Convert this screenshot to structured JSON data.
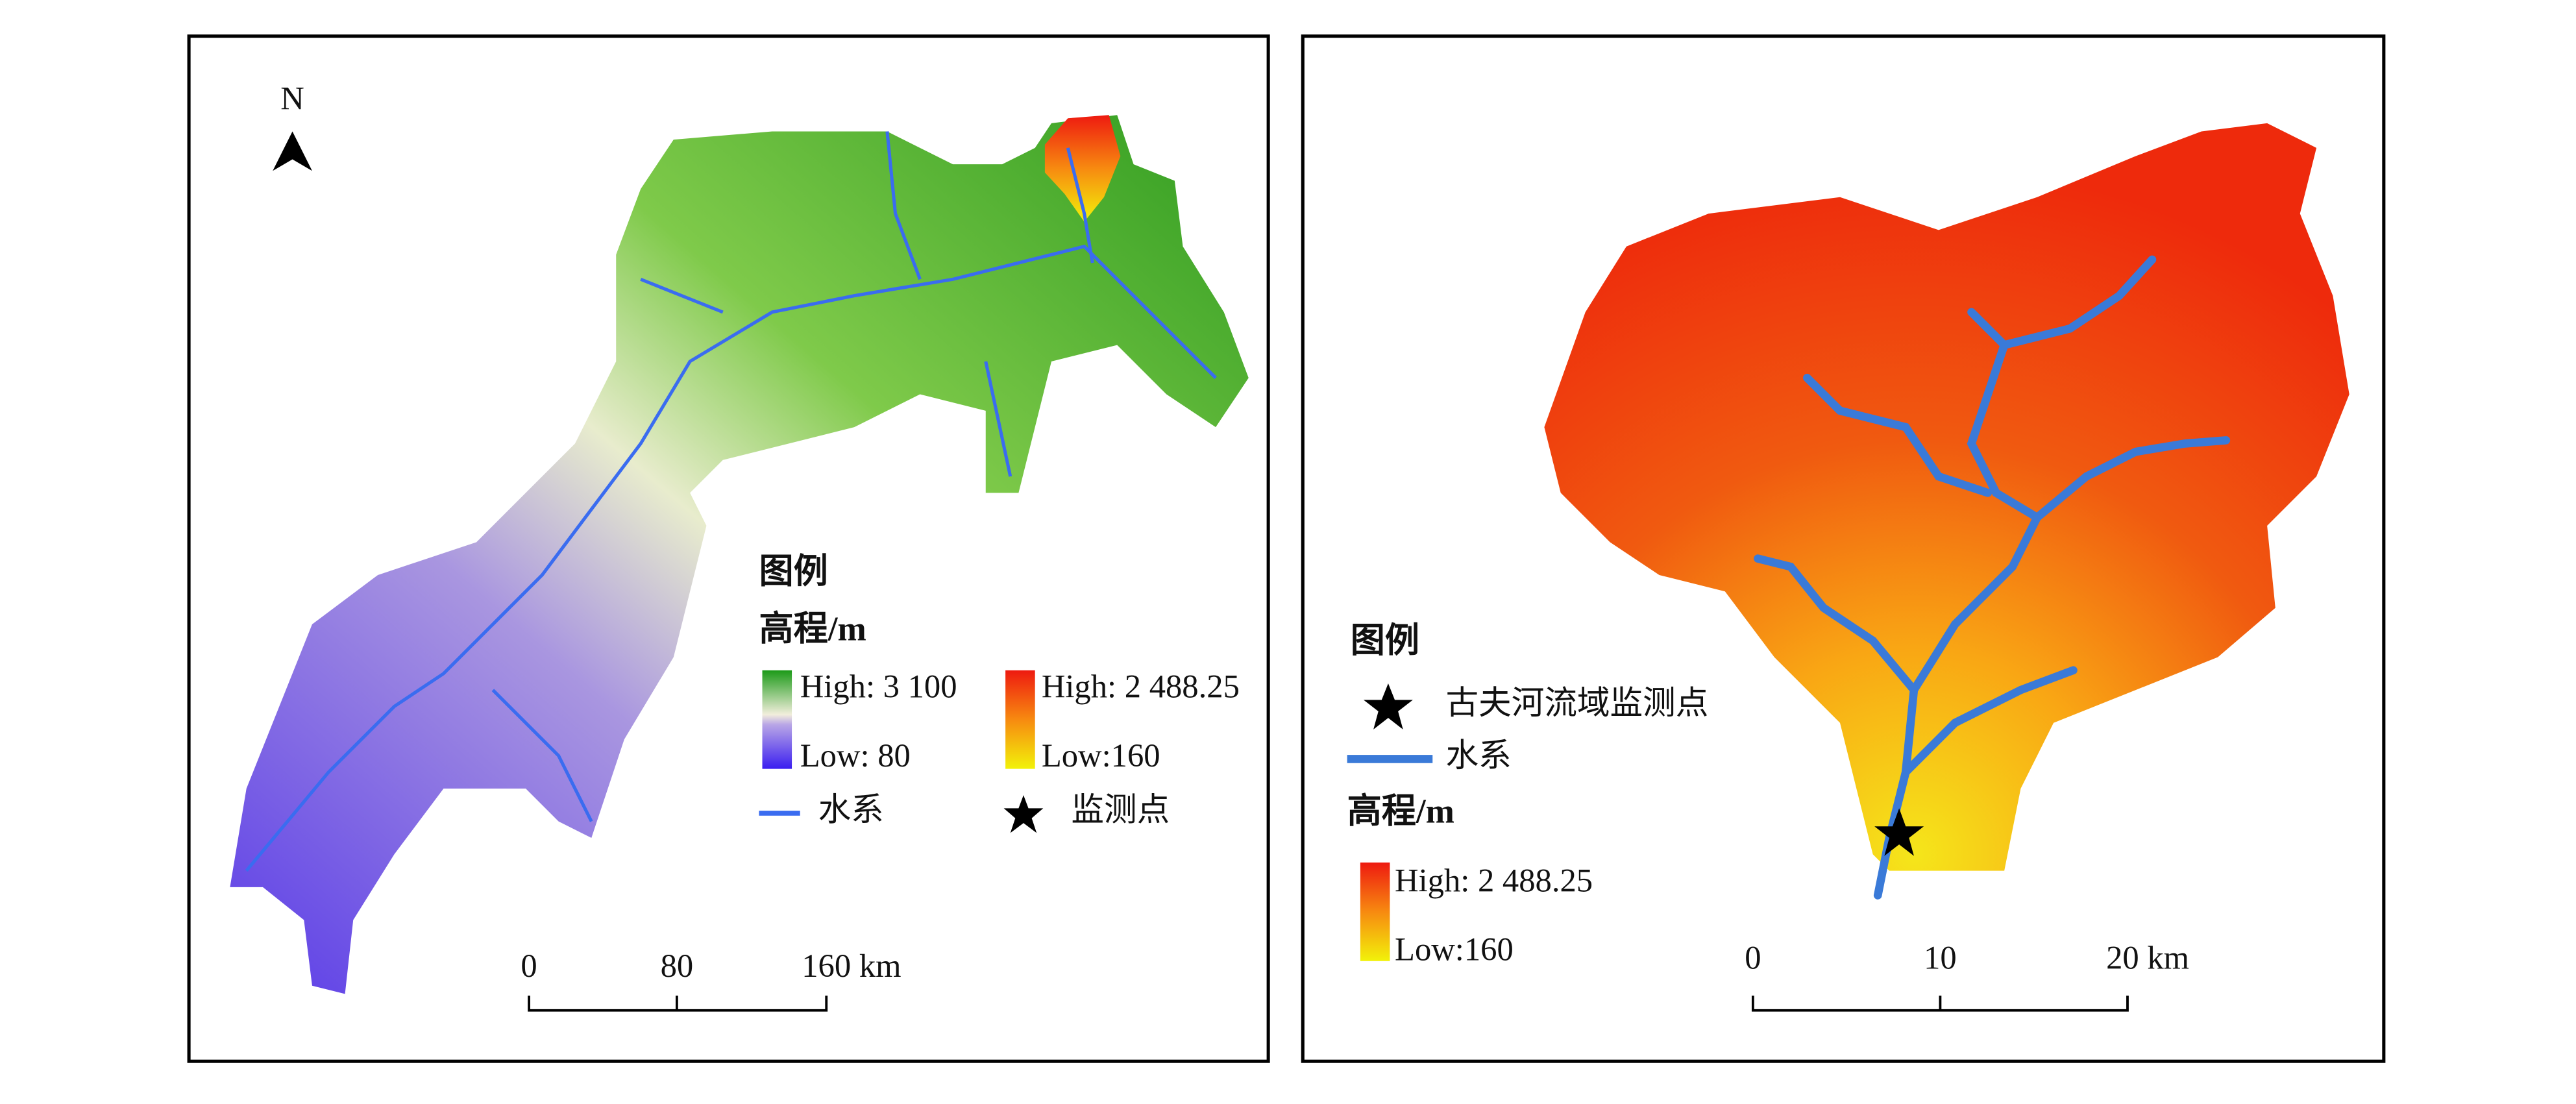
{
  "left_map": {
    "north": "N",
    "legend": {
      "title": "图例",
      "elevation_label": "高程/m",
      "high_1": "High: 3 100",
      "low_1": "Low: 80",
      "high_2": "High: 2 488.25",
      "low_2": "Low:160",
      "river": "水系",
      "station": "监测点"
    },
    "scale_bar": [
      "0",
      "80",
      "160 km"
    ]
  },
  "right_map": {
    "legend": {
      "title": "图例",
      "station": "古夫河流域监测点",
      "river": "水系",
      "elevation_label": "高程/m",
      "high": "High: 2 488.25",
      "low": "Low:160"
    },
    "scale_bar": [
      "0",
      "10",
      "20 km"
    ]
  }
}
